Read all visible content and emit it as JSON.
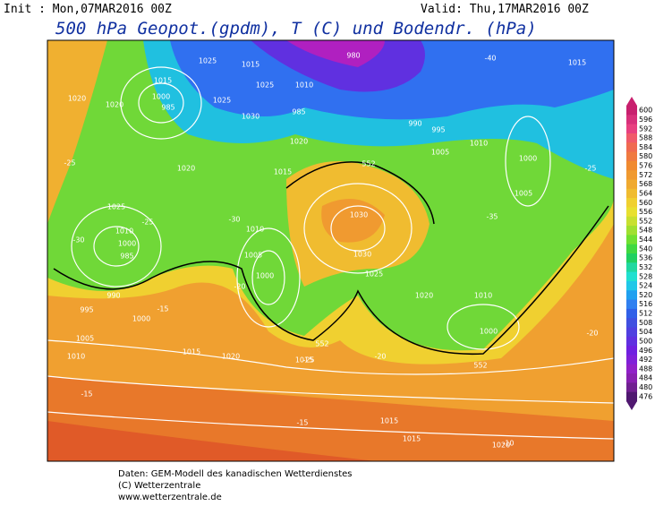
{
  "header": {
    "init": "Init : Mon,07MAR2016 00Z",
    "valid": "Valid: Thu,17MAR2016 00Z",
    "title": "500 hPa Geopot.(gpdm), T (C) und Bodendr. (hPa)"
  },
  "colorbar": {
    "labels": [
      "600",
      "596",
      "592",
      "588",
      "584",
      "580",
      "576",
      "572",
      "568",
      "564",
      "560",
      "556",
      "552",
      "548",
      "544",
      "540",
      "536",
      "532",
      "528",
      "524",
      "520",
      "516",
      "512",
      "508",
      "504",
      "500",
      "496",
      "492",
      "488",
      "484",
      "480",
      "476"
    ],
    "colors": [
      "#c8206e",
      "#d8307a",
      "#e84080",
      "#f05a6a",
      "#f06a50",
      "#f07a40",
      "#f08a30",
      "#f09a30",
      "#f0aa30",
      "#f0bc30",
      "#f0d030",
      "#e8e030",
      "#c8e030",
      "#a0e030",
      "#70e030",
      "#40d840",
      "#20d060",
      "#20d8a0",
      "#20e0d0",
      "#20c8e8",
      "#20a0f0",
      "#3080f0",
      "#3060e8",
      "#4050e0",
      "#5040e0",
      "#6030e0",
      "#7020e0",
      "#8020d8",
      "#9020c8",
      "#8820b0",
      "#702090",
      "#501870"
    ]
  },
  "map_labels": [
    "1025",
    "1015",
    "980",
    "1015",
    "1000",
    "985",
    "1020",
    "1020",
    "1025",
    "1030",
    "1025",
    "1010",
    "985",
    "990",
    "995",
    "1020",
    "1015",
    "1020",
    "1025",
    "1010",
    "1000",
    "985",
    "1010",
    "1005",
    "1000",
    "1030",
    "1030",
    "1025",
    "1020",
    "1010",
    "1000",
    "990",
    "995",
    "1000",
    "1005",
    "1010",
    "1015",
    "1020",
    "1015",
    "1015",
    "1015",
    "1020",
    "1010",
    "1000",
    "1005",
    "1015",
    "1005",
    "552",
    "552",
    "552",
    "-25",
    "-30",
    "-25",
    "-20",
    "-15",
    "-30",
    "-25",
    "-20",
    "-15",
    "-15",
    "-10",
    "-25",
    "-40",
    "-35",
    "-20"
  ],
  "footer": [
    "Daten: GEM-Modell des kanadischen Wetterdienstes",
    "(C) Wetterzentrale",
    "www.wetterzentrale.de"
  ]
}
